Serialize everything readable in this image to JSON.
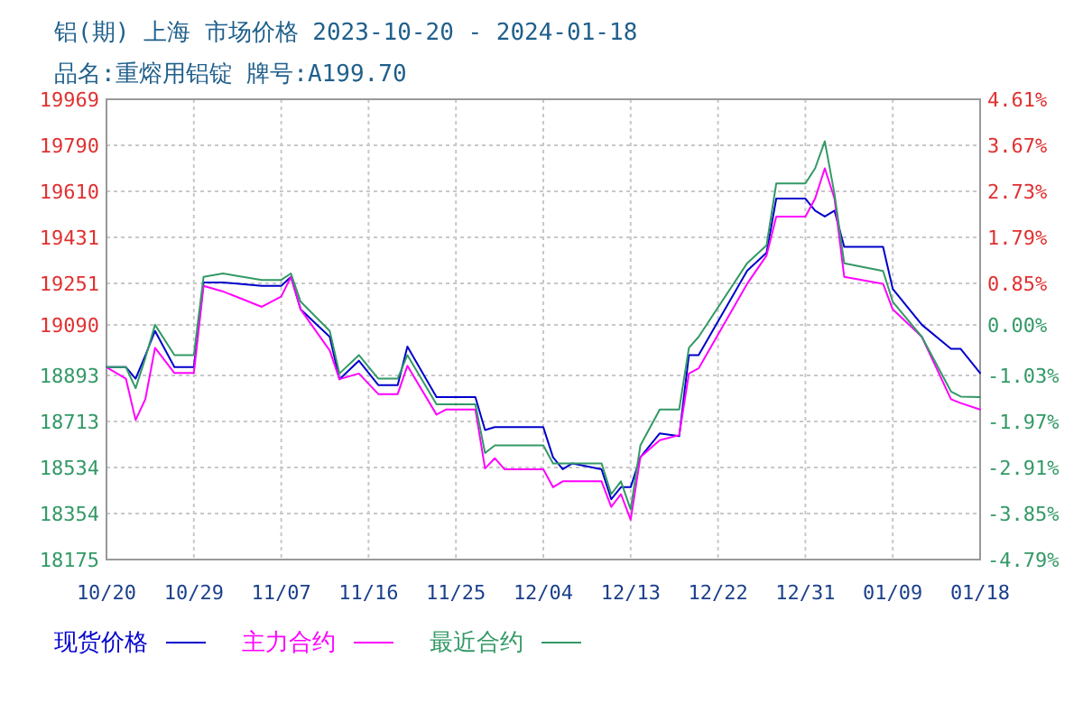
{
  "chart_data": {
    "type": "line",
    "title": "铝(期) 上海 市场价格 2023-10-20 - 2024-01-18",
    "subtitle": "品名:重熔用铝锭 牌号:A199.70",
    "x": [
      "2023-10-20",
      "2023-10-22",
      "2023-10-23",
      "2023-10-24",
      "2023-10-25",
      "2023-10-27",
      "2023-10-29",
      "2023-10-30",
      "2023-11-01",
      "2023-11-05",
      "2023-11-07",
      "2023-11-08",
      "2023-11-09",
      "2023-11-12",
      "2023-11-13",
      "2023-11-15",
      "2023-11-17",
      "2023-11-19",
      "2023-11-20",
      "2023-11-23",
      "2023-11-24",
      "2023-11-27",
      "2023-11-28",
      "2023-11-29",
      "2023-11-30",
      "2023-12-04",
      "2023-12-05",
      "2023-12-06",
      "2023-12-07",
      "2023-12-10",
      "2023-12-11",
      "2023-12-12",
      "2023-12-13",
      "2023-12-14",
      "2023-12-16",
      "2023-12-18",
      "2023-12-19",
      "2023-12-20",
      "2023-12-25",
      "2023-12-27",
      "2023-12-28",
      "2023-12-31",
      "2024-01-01",
      "2024-01-02",
      "2024-01-03",
      "2024-01-04",
      "2024-01-08",
      "2024-01-09",
      "2024-01-12",
      "2024-01-15",
      "2024-01-16",
      "2024-01-18"
    ],
    "series": [
      {
        "name": "现货价格",
        "color": "#0000cc",
        "values": [
          18925,
          18925,
          18880,
          18970,
          19066,
          18925,
          18925,
          19255,
          19255,
          19242,
          19242,
          19277,
          19150,
          19043,
          18878,
          18950,
          18855,
          18855,
          19005,
          18808,
          18808,
          18808,
          18680,
          18691,
          18691,
          18691,
          18574,
          18527,
          18550,
          18527,
          18410,
          18457,
          18457,
          18574,
          18667,
          18656,
          18972,
          18972,
          19301,
          19371,
          19582,
          19582,
          19535,
          19512,
          19535,
          19394,
          19394,
          19230,
          19090,
          18996,
          18996,
          18902
        ]
      },
      {
        "name": "主力合约",
        "color": "#ff00ff",
        "values": [
          18925,
          18880,
          18719,
          18800,
          19000,
          18902,
          18902,
          19242,
          19220,
          19160,
          19200,
          19277,
          19150,
          18990,
          18878,
          18900,
          18820,
          18820,
          18930,
          18740,
          18760,
          18760,
          18530,
          18570,
          18527,
          18527,
          18457,
          18480,
          18480,
          18480,
          18380,
          18430,
          18330,
          18574,
          18640,
          18660,
          18900,
          18920,
          19250,
          19360,
          19512,
          19512,
          19582,
          19700,
          19582,
          19277,
          19250,
          19150,
          19043,
          18800,
          18785,
          18760
        ]
      },
      {
        "name": "最近合约",
        "color": "#339966",
        "values": [
          18925,
          18925,
          18843,
          18960,
          19090,
          18972,
          18972,
          19277,
          19290,
          19265,
          19265,
          19290,
          19180,
          19066,
          18900,
          18972,
          18880,
          18880,
          18972,
          18780,
          18780,
          18780,
          18590,
          18620,
          18620,
          18620,
          18550,
          18550,
          18550,
          18550,
          18430,
          18480,
          18370,
          18620,
          18760,
          18760,
          19000,
          19043,
          19330,
          19400,
          19641,
          19641,
          19700,
          19805,
          19600,
          19330,
          19300,
          19180,
          19043,
          18830,
          18810,
          18808
        ]
      }
    ],
    "xlim": [
      "2023-10-20",
      "2024-01-18"
    ],
    "xticks": [
      {
        "value": "2023-10-20",
        "label": "10/20"
      },
      {
        "value": "2023-10-29",
        "label": "10/29"
      },
      {
        "value": "2023-11-07",
        "label": "11/07"
      },
      {
        "value": "2023-11-16",
        "label": "11/16"
      },
      {
        "value": "2023-11-25",
        "label": "11/25"
      },
      {
        "value": "2023-12-04",
        "label": "12/04"
      },
      {
        "value": "2023-12-13",
        "label": "12/13"
      },
      {
        "value": "2023-12-22",
        "label": "12/22"
      },
      {
        "value": "2023-12-31",
        "label": "12/31"
      },
      {
        "value": "2024-01-09",
        "label": "01/09"
      },
      {
        "value": "2024-01-18",
        "label": "01/18"
      }
    ],
    "ylim": [
      18175,
      19969
    ],
    "yticks": [
      19969,
      19790,
      19610,
      19431,
      19251,
      19090,
      18893,
      18713,
      18534,
      18354,
      18175
    ],
    "y2lim": [
      -4.79,
      4.61
    ],
    "y2ticks": [
      {
        "value": 4.61,
        "label": "4.61%"
      },
      {
        "value": 3.67,
        "label": "3.67%"
      },
      {
        "value": 2.73,
        "label": "2.73%"
      },
      {
        "value": 1.79,
        "label": "1.79%"
      },
      {
        "value": 0.85,
        "label": "0.85%"
      },
      {
        "value": 0,
        "label": "0.00%"
      },
      {
        "value": -1.03,
        "label": "-1.03%"
      },
      {
        "value": -1.97,
        "label": "-1.97%"
      },
      {
        "value": -2.91,
        "label": "-2.91%"
      },
      {
        "value": -3.85,
        "label": "-3.85%"
      },
      {
        "value": -4.79,
        "label": "-4.79%"
      }
    ],
    "grid": true,
    "legend": "bottom",
    "line_style": "solid",
    "marker": "none"
  }
}
